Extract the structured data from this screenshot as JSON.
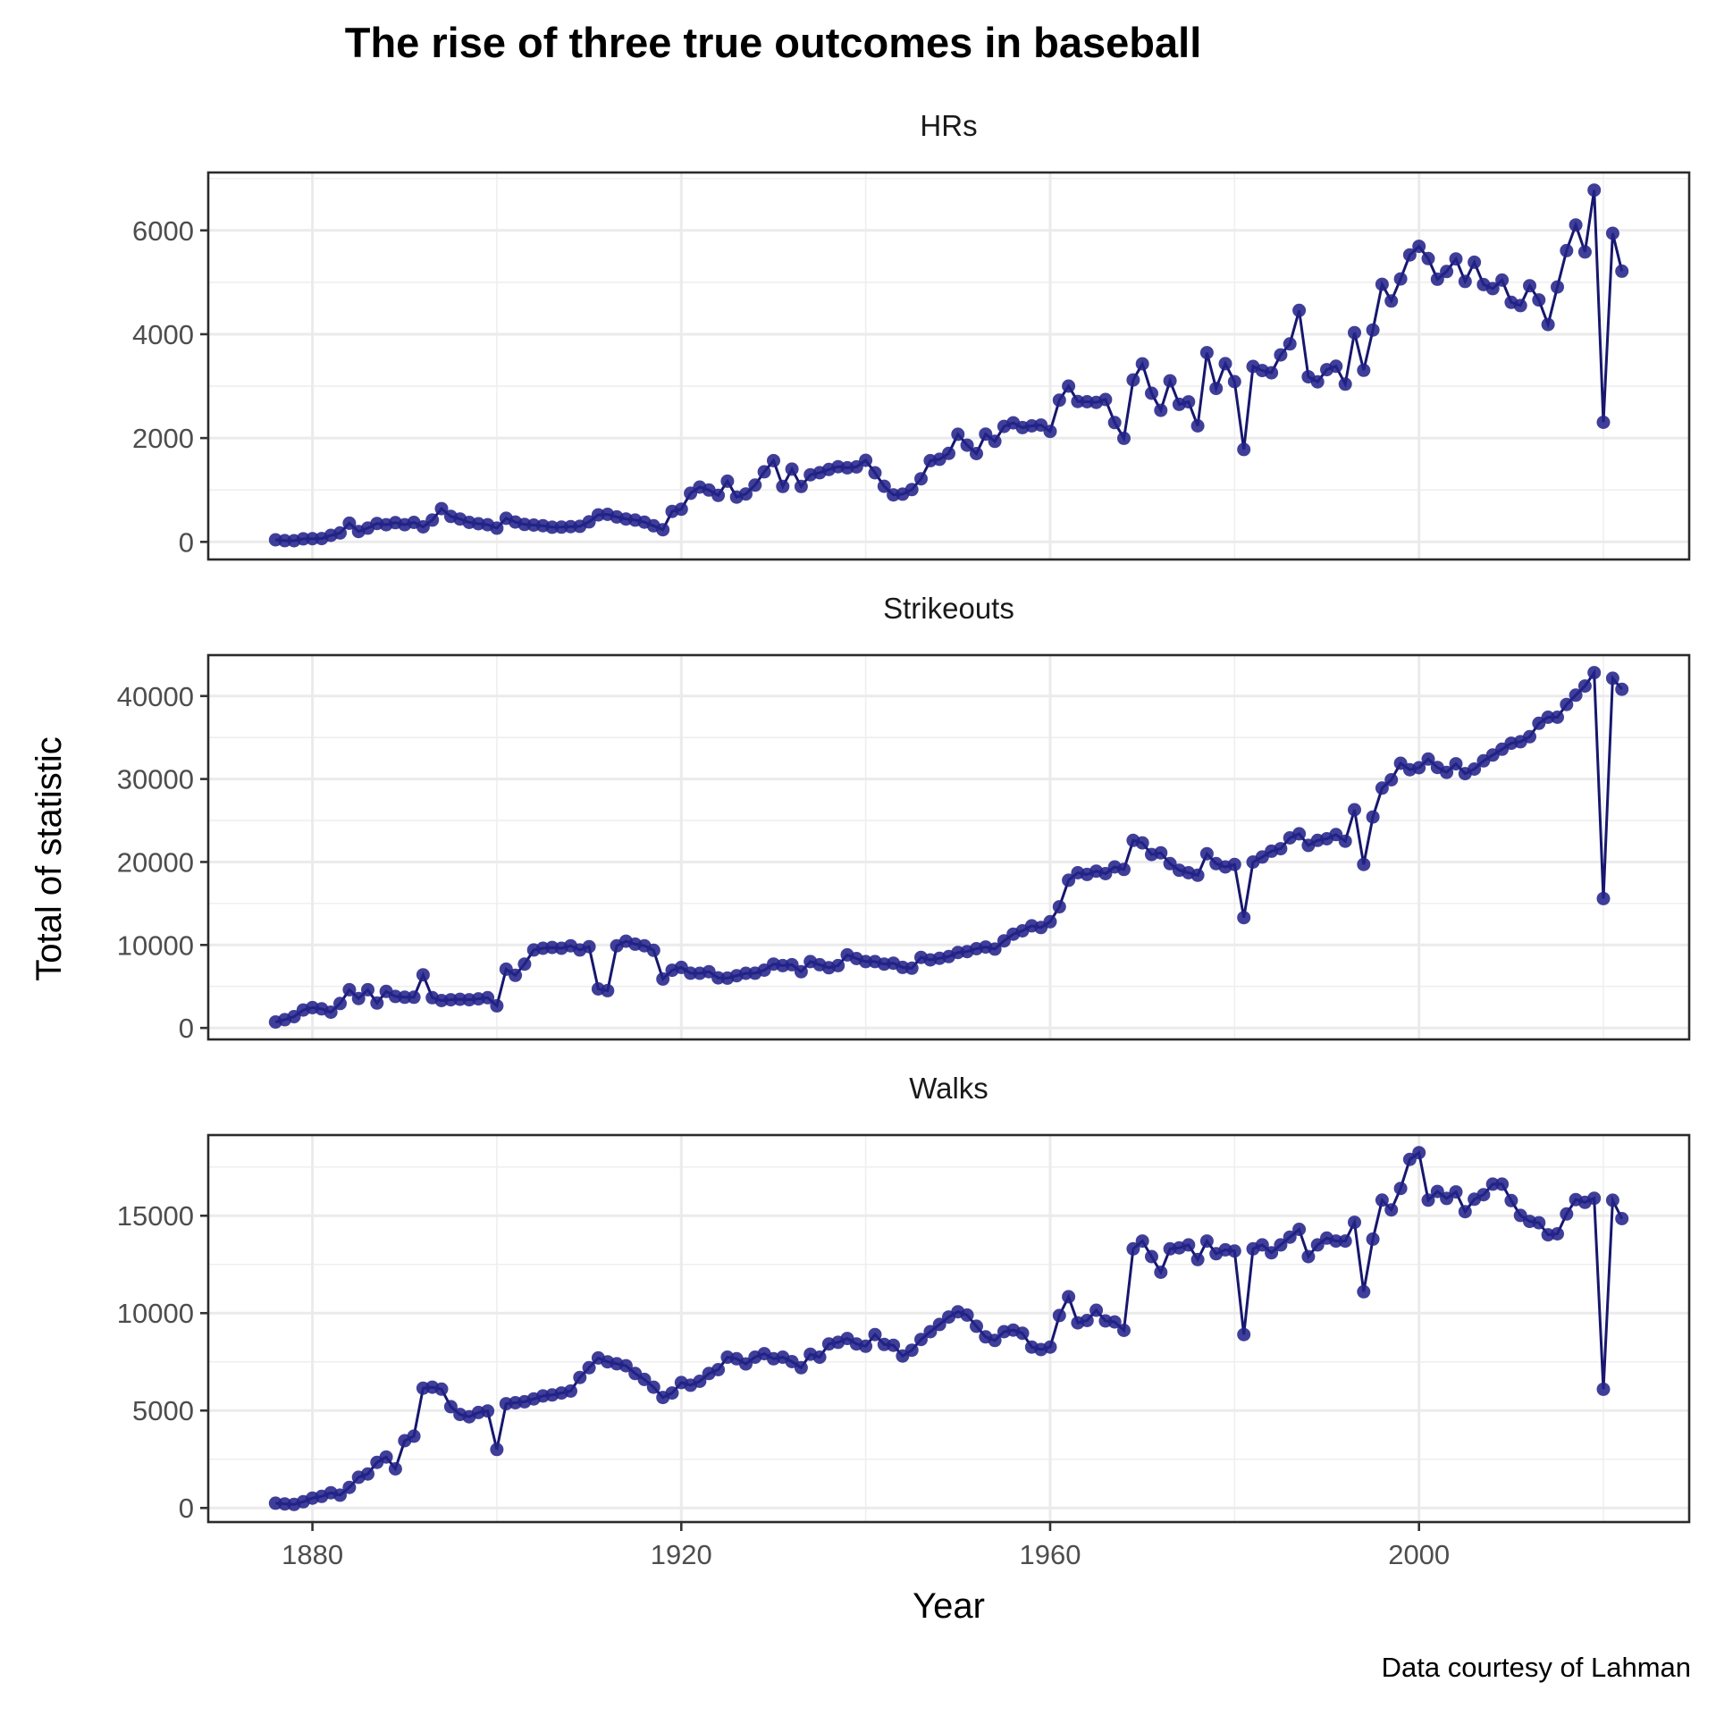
{
  "page": {
    "title": "The rise of three true outcomes in baseball",
    "y_axis_label": "Total of statistic",
    "x_axis_label": "Year",
    "caption": "Data courtesy of Lahman"
  },
  "style": {
    "point_color": "#22228a",
    "line_color": "#17176e",
    "grid_color": "#ebebeb",
    "border_color": "#2b2b2b",
    "tick_label_color": "#4d4d4d"
  },
  "x_axis": {
    "label": "Year",
    "ticks": [
      1880,
      1920,
      1960,
      2000
    ],
    "minor_ticks": [
      1900,
      1940,
      1980,
      2020
    ],
    "range": [
      1868.7,
      2029.3
    ]
  },
  "chart_data": [
    {
      "type": "line",
      "title": "HRs",
      "x_start": 1876,
      "x_end": 2022,
      "ylim": [
        -339,
        7115
      ],
      "yticks": [
        0,
        2000,
        4000,
        6000
      ],
      "yminor": [
        1000,
        3000,
        5000,
        7000
      ],
      "values": [
        40,
        24,
        23,
        58,
        62,
        64,
        126,
        173,
        360,
        200,
        265,
        355,
        330,
        370,
        330,
        375,
        290,
        420,
        640,
        490,
        440,
        375,
        350,
        330,
        265,
        455,
        383,
        335,
        323,
        312,
        283,
        285,
        294,
        300,
        385,
        520,
        530,
        480,
        440,
        420,
        380,
        310,
        235,
        587,
        630,
        937,
        1055,
        998,
        895,
        1169,
        862,
        922,
        1093,
        1349,
        1565,
        1068,
        1402,
        1068,
        1293,
        1332,
        1394,
        1448,
        1427,
        1445,
        1571,
        1331,
        1071,
        905,
        920,
        1007,
        1215,
        1565,
        1591,
        1704,
        2073,
        1863,
        1701,
        2076,
        1937,
        2224,
        2294,
        2202,
        2235,
        2250,
        2128,
        2730,
        3001,
        2704,
        2699,
        2688,
        2743,
        2299,
        1995,
        3119,
        3429,
        2863,
        2534,
        3102,
        2649,
        2698,
        2235,
        3644,
        2956,
        3433,
        3087,
        1781,
        3379,
        3301,
        3258,
        3602,
        3813,
        4458,
        3180,
        3083,
        3317,
        3383,
        3038,
        4030,
        3306,
        4081,
        4962,
        4640,
        5064,
        5528,
        5693,
        5458,
        5059,
        5207,
        5451,
        5017,
        5386,
        4957,
        4878,
        5042,
        4613,
        4552,
        4934,
        4661,
        4186,
        4909,
        5610,
        6105,
        5585,
        6776,
        2304,
        5944,
        5215
      ]
    },
    {
      "type": "line",
      "title": "Strikeouts",
      "x_start": 1876,
      "x_end": 2022,
      "ylim": [
        -1385,
        44930
      ],
      "yticks": [
        0,
        10000,
        20000,
        30000,
        40000
      ],
      "yminor": [
        5000,
        15000,
        25000,
        35000
      ],
      "values": [
        720,
        1000,
        1360,
        2160,
        2450,
        2300,
        1900,
        2950,
        4600,
        3550,
        4600,
        3000,
        4400,
        3800,
        3700,
        3700,
        6400,
        3650,
        3300,
        3400,
        3450,
        3400,
        3500,
        3650,
        2670,
        7076,
        6333,
        7698,
        9398,
        9600,
        9700,
        9600,
        9900,
        9400,
        9800,
        4700,
        4500,
        9900,
        10450,
        10100,
        9900,
        9350,
        5900,
        6950,
        7300,
        6600,
        6590,
        6780,
        6040,
        6000,
        6300,
        6590,
        6600,
        6960,
        7700,
        7510,
        7620,
        6780,
        8000,
        7620,
        7250,
        7510,
        8800,
        8365,
        8000,
        8000,
        7700,
        7800,
        7300,
        7200,
        8500,
        8200,
        8400,
        8600,
        9100,
        9200,
        9550,
        9750,
        9500,
        10500,
        11300,
        11700,
        12300,
        12100,
        12800,
        14600,
        17800,
        18700,
        18500,
        18900,
        18600,
        19400,
        19100,
        22600,
        22300,
        20900,
        21100,
        19800,
        19000,
        18700,
        18400,
        21000,
        19800,
        19400,
        19700,
        13300,
        20000,
        20600,
        21300,
        21600,
        22900,
        23400,
        22000,
        22600,
        22800,
        23300,
        22500,
        26300,
        19700,
        25425,
        28900,
        29900,
        31900,
        31119,
        31356,
        32404,
        31394,
        30801,
        31828,
        30644,
        31200,
        32189,
        32884,
        33591,
        34306,
        34488,
        35100,
        36710,
        37441,
        37446,
        38982,
        40104,
        41207,
        42823,
        15586,
        42145,
        40812
      ]
    },
    {
      "type": "line",
      "title": "Walks",
      "x_start": 1876,
      "x_end": 2022,
      "ylim": [
        -723,
        19140
      ],
      "yticks": [
        0,
        5000,
        10000,
        15000
      ],
      "yminor": [
        2500,
        7500,
        12500,
        17500
      ],
      "values": [
        245,
        210,
        180,
        320,
        505,
        595,
        780,
        660,
        1055,
        1575,
        1745,
        2340,
        2615,
        2005,
        3450,
        3685,
        6150,
        6200,
        6100,
        5200,
        4800,
        4680,
        4900,
        4980,
        3000,
        5350,
        5400,
        5450,
        5600,
        5750,
        5800,
        5900,
        6000,
        6700,
        7200,
        7700,
        7500,
        7400,
        7300,
        6900,
        6600,
        6200,
        5670,
        5900,
        6440,
        6300,
        6500,
        6900,
        7100,
        7740,
        7660,
        7390,
        7740,
        7920,
        7660,
        7740,
        7510,
        7200,
        7890,
        7740,
        8420,
        8500,
        8700,
        8420,
        8300,
        8900,
        8390,
        8350,
        7800,
        8100,
        8650,
        9050,
        9420,
        9800,
        10070,
        9900,
        9330,
        8780,
        8600,
        9050,
        9130,
        8970,
        8260,
        8130,
        8260,
        9880,
        10840,
        9500,
        9620,
        10150,
        9600,
        9550,
        9115,
        13300,
        13700,
        12900,
        12100,
        13300,
        13350,
        13500,
        12750,
        13700,
        13050,
        13250,
        13190,
        8900,
        13300,
        13500,
        13100,
        13500,
        13900,
        14300,
        12900,
        13500,
        13850,
        13700,
        13700,
        14665,
        11100,
        13800,
        15800,
        15300,
        16400,
        17891,
        18237,
        15800,
        16246,
        15889,
        16222,
        15207,
        15847,
        16079,
        16620,
        16620,
        15778,
        15018,
        14709,
        14640,
        14020,
        14073,
        15088,
        15829,
        15686,
        15895,
        6092,
        15794,
        14853
      ]
    }
  ]
}
